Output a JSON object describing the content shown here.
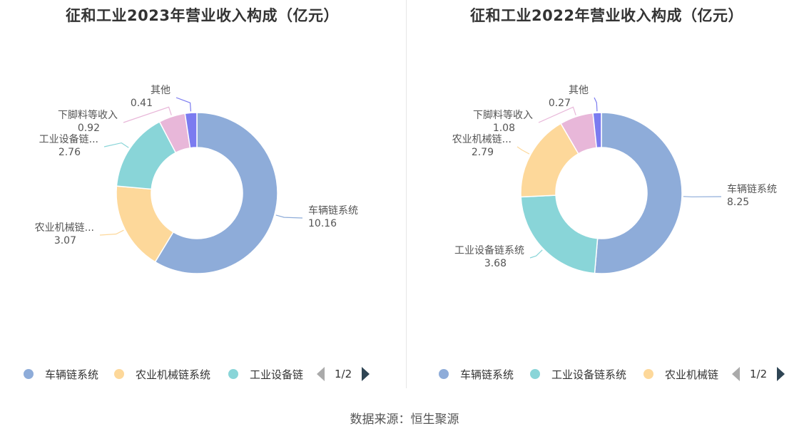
{
  "source_label": "数据来源：恒生聚源",
  "chart_data": [
    {
      "type": "pie",
      "title": "征和工业2023年营业收入构成（亿元）",
      "slices": [
        {
          "name": "车辆链系统",
          "label": "车辆链系统",
          "value": 10.16,
          "value_text": "10.16",
          "color": "#8eacd9"
        },
        {
          "name": "农业机械链系统",
          "label": "农业机械链...",
          "value": 3.07,
          "value_text": "3.07",
          "color": "#fdd89a"
        },
        {
          "name": "工业设备链系统",
          "label": "工业设备链...",
          "value": 2.76,
          "value_text": "2.76",
          "color": "#89d5d8"
        },
        {
          "name": "下脚料等收入",
          "label": "下脚料等收入",
          "value": 0.92,
          "value_text": "0.92",
          "color": "#e8b7d9"
        },
        {
          "name": "其他",
          "label": "其他",
          "value": 0.41,
          "value_text": "0.41",
          "color": "#7b7bf0"
        }
      ],
      "legend": {
        "items": [
          {
            "label": "车辆链系统",
            "color": "#8eacd9"
          },
          {
            "label": "农业机械链系统",
            "color": "#fdd89a"
          },
          {
            "label": "工业设备链",
            "color": "#89d5d8"
          }
        ],
        "page": "1/2"
      }
    },
    {
      "type": "pie",
      "title": "征和工业2022年营业收入构成（亿元）",
      "slices": [
        {
          "name": "车辆链系统",
          "label": "车辆链系统",
          "value": 8.25,
          "value_text": "8.25",
          "color": "#8eacd9"
        },
        {
          "name": "工业设备链系统",
          "label": "工业设备链系统",
          "value": 3.68,
          "value_text": "3.68",
          "color": "#89d5d8"
        },
        {
          "name": "农业机械链系统",
          "label": "农业机械链...",
          "value": 2.79,
          "value_text": "2.79",
          "color": "#fdd89a"
        },
        {
          "name": "下脚料等收入",
          "label": "下脚料等收入",
          "value": 1.08,
          "value_text": "1.08",
          "color": "#e8b7d9"
        },
        {
          "name": "其他",
          "label": "其他",
          "value": 0.27,
          "value_text": "0.27",
          "color": "#7b7bf0"
        }
      ],
      "legend": {
        "items": [
          {
            "label": "车辆链系统",
            "color": "#8eacd9"
          },
          {
            "label": "工业设备链系统",
            "color": "#89d5d8"
          },
          {
            "label": "农业机械链",
            "color": "#fdd89a"
          }
        ],
        "page": "1/2"
      }
    }
  ]
}
